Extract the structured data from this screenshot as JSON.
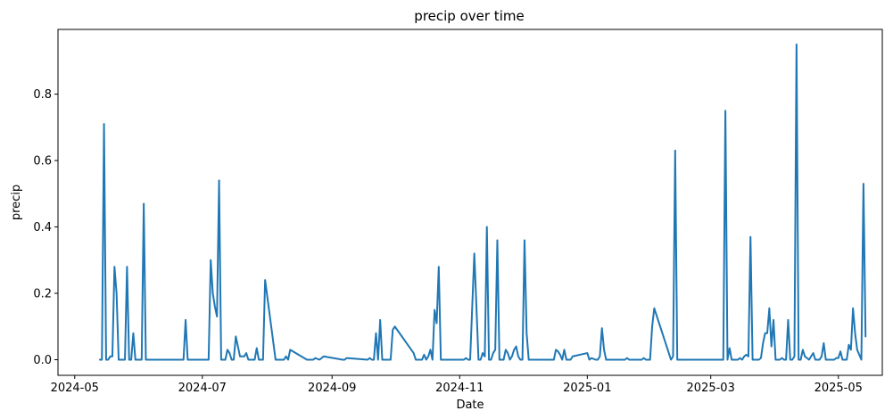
{
  "chart_data": {
    "type": "line",
    "title": "precip over time",
    "xlabel": "Date",
    "ylabel": "precip",
    "grid": false,
    "legend": "none",
    "color": "#1f77b4",
    "xlim": [
      "2024-04-23",
      "2025-05-22"
    ],
    "ylim": [
      -0.047,
      0.995
    ],
    "x_ticks": [
      {
        "date": "2024-05-01",
        "label": "2024-05"
      },
      {
        "date": "2024-07-01",
        "label": "2024-07"
      },
      {
        "date": "2024-09-01",
        "label": "2024-09"
      },
      {
        "date": "2024-11-01",
        "label": "2024-11"
      },
      {
        "date": "2025-01-01",
        "label": "2025-01"
      },
      {
        "date": "2025-03-01",
        "label": "2025-03"
      },
      {
        "date": "2025-05-01",
        "label": "2025-05"
      }
    ],
    "y_ticks": [
      {
        "value": 0.0,
        "label": "0.0"
      },
      {
        "value": 0.2,
        "label": "0.2"
      },
      {
        "value": 0.4,
        "label": "0.4"
      },
      {
        "value": 0.6,
        "label": "0.6"
      },
      {
        "value": 0.8,
        "label": "0.8"
      }
    ],
    "series": [
      {
        "x": [
          "2024-05-13",
          "2024-05-14",
          "2024-05-15",
          "2024-05-16",
          "2024-05-17",
          "2024-05-18",
          "2024-05-19",
          "2024-05-20",
          "2024-05-21",
          "2024-05-22",
          "2024-05-23",
          "2024-05-24",
          "2024-05-25",
          "2024-05-26",
          "2024-05-27",
          "2024-05-28",
          "2024-05-29",
          "2024-05-30",
          "2024-05-31",
          "2024-06-01",
          "2024-06-02",
          "2024-06-03",
          "2024-06-04",
          "2024-06-05",
          "2024-06-06",
          "2024-06-10",
          "2024-06-20",
          "2024-06-22",
          "2024-06-23",
          "2024-06-24",
          "2024-06-25",
          "2024-07-03",
          "2024-07-04",
          "2024-07-05",
          "2024-07-06",
          "2024-07-07",
          "2024-07-08",
          "2024-07-09",
          "2024-07-10",
          "2024-07-11",
          "2024-07-12",
          "2024-07-13",
          "2024-07-14",
          "2024-07-15",
          "2024-07-16",
          "2024-07-17",
          "2024-07-18",
          "2024-07-19",
          "2024-07-20",
          "2024-07-21",
          "2024-07-22",
          "2024-07-23",
          "2024-07-24",
          "2024-07-25",
          "2024-07-26",
          "2024-07-27",
          "2024-07-28",
          "2024-07-29",
          "2024-07-30",
          "2024-07-31",
          "2024-08-05",
          "2024-08-06",
          "2024-08-08",
          "2024-08-09",
          "2024-08-10",
          "2024-08-11",
          "2024-08-12",
          "2024-08-20",
          "2024-08-23",
          "2024-08-24",
          "2024-08-26",
          "2024-08-27",
          "2024-08-28",
          "2024-09-06",
          "2024-09-07",
          "2024-09-08",
          "2024-09-18",
          "2024-09-19",
          "2024-09-20",
          "2024-09-21",
          "2024-09-22",
          "2024-09-23",
          "2024-09-24",
          "2024-09-25",
          "2024-09-26",
          "2024-09-27",
          "2024-09-28",
          "2024-09-29",
          "2024-09-30",
          "2024-10-01",
          "2024-10-10",
          "2024-10-11",
          "2024-10-12",
          "2024-10-13",
          "2024-10-14",
          "2024-10-15",
          "2024-10-16",
          "2024-10-17",
          "2024-10-18",
          "2024-10-19",
          "2024-10-20",
          "2024-10-21",
          "2024-10-22",
          "2024-10-23",
          "2024-10-24",
          "2024-10-28",
          "2024-11-01",
          "2024-11-03",
          "2024-11-04",
          "2024-11-05",
          "2024-11-06",
          "2024-11-07",
          "2024-11-08",
          "2024-11-10",
          "2024-11-11",
          "2024-11-12",
          "2024-11-13",
          "2024-11-14",
          "2024-11-15",
          "2024-11-16",
          "2024-11-17",
          "2024-11-18",
          "2024-11-19",
          "2024-11-20",
          "2024-11-21",
          "2024-11-22",
          "2024-11-23",
          "2024-11-24",
          "2024-11-25",
          "2024-11-26",
          "2024-11-27",
          "2024-11-28",
          "2024-11-29",
          "2024-11-30",
          "2024-12-01",
          "2024-12-02",
          "2024-12-03",
          "2024-12-04",
          "2024-12-12",
          "2024-12-15",
          "2024-12-16",
          "2024-12-17",
          "2024-12-18",
          "2024-12-19",
          "2024-12-20",
          "2024-12-21",
          "2024-12-22",
          "2024-12-23",
          "2024-12-24",
          "2024-12-25",
          "2025-01-01",
          "2025-01-02",
          "2025-01-03",
          "2025-01-05",
          "2025-01-06",
          "2025-01-07",
          "2025-01-08",
          "2025-01-09",
          "2025-01-10",
          "2025-01-17",
          "2025-01-18",
          "2025-01-19",
          "2025-01-20",
          "2025-01-21",
          "2025-01-22",
          "2025-01-23",
          "2025-01-24",
          "2025-01-25",
          "2025-01-26",
          "2025-01-27",
          "2025-01-28",
          "2025-01-29",
          "2025-01-30",
          "2025-01-31",
          "2025-02-01",
          "2025-02-02",
          "2025-02-10",
          "2025-02-11",
          "2025-02-12",
          "2025-02-13",
          "2025-02-14",
          "2025-02-15",
          "2025-02-28",
          "2025-03-01",
          "2025-03-02",
          "2025-03-03",
          "2025-03-04",
          "2025-03-05",
          "2025-03-06",
          "2025-03-07",
          "2025-03-08",
          "2025-03-09",
          "2025-03-10",
          "2025-03-11",
          "2025-03-12",
          "2025-03-13",
          "2025-03-14",
          "2025-03-15",
          "2025-03-16",
          "2025-03-17",
          "2025-03-18",
          "2025-03-19",
          "2025-03-20",
          "2025-03-21",
          "2025-03-22",
          "2025-03-23",
          "2025-03-24",
          "2025-03-25",
          "2025-03-26",
          "2025-03-27",
          "2025-03-28",
          "2025-03-29",
          "2025-03-30",
          "2025-03-31",
          "2025-04-01",
          "2025-04-02",
          "2025-04-03",
          "2025-04-04",
          "2025-04-05",
          "2025-04-06",
          "2025-04-07",
          "2025-04-08",
          "2025-04-09",
          "2025-04-10",
          "2025-04-11",
          "2025-04-12",
          "2025-04-13",
          "2025-04-14",
          "2025-04-15",
          "2025-04-16",
          "2025-04-17",
          "2025-04-18",
          "2025-04-19",
          "2025-04-20",
          "2025-04-21",
          "2025-04-22",
          "2025-04-23",
          "2025-04-24",
          "2025-04-25",
          "2025-04-26",
          "2025-04-27",
          "2025-04-28",
          "2025-04-29",
          "2025-04-30",
          "2025-05-01",
          "2025-05-02",
          "2025-05-03",
          "2025-05-04",
          "2025-05-05",
          "2025-05-06",
          "2025-05-07",
          "2025-05-08",
          "2025-05-09",
          "2025-05-10",
          "2025-05-11",
          "2025-05-12",
          "2025-05-13",
          "2025-05-14"
        ],
        "y": [
          0,
          0,
          0.71,
          0,
          0,
          0.01,
          0.01,
          0.28,
          0.2,
          0,
          0,
          0,
          0,
          0.28,
          0,
          0,
          0.08,
          0,
          0,
          0,
          0,
          0.47,
          0,
          0,
          0,
          0,
          0,
          0,
          0.12,
          0,
          0,
          0,
          0,
          0.3,
          0.2,
          0.16,
          0.13,
          0.54,
          0,
          0,
          0,
          0.03,
          0.02,
          0,
          0,
          0.07,
          0.04,
          0.01,
          0.01,
          0.01,
          0.02,
          0,
          0,
          0,
          0,
          0.035,
          0,
          0,
          0,
          0.24,
          0,
          0,
          0,
          0,
          0.01,
          0,
          0.03,
          0,
          0,
          0.005,
          0,
          0.005,
          0.01,
          0,
          0,
          0.005,
          0,
          0.005,
          0,
          0,
          0.08,
          0,
          0.12,
          0,
          0,
          0,
          0,
          0,
          0.09,
          0.1,
          0.02,
          0,
          0,
          0,
          0,
          0.015,
          0,
          0.01,
          0.03,
          0,
          0.15,
          0.11,
          0.28,
          0,
          0,
          0,
          0,
          0,
          0.005,
          0,
          0,
          0.16,
          0.32,
          0,
          0,
          0.02,
          0.01,
          0.4,
          0,
          0,
          0.02,
          0.03,
          0.36,
          0,
          0,
          0,
          0.03,
          0.02,
          0,
          0.01,
          0.03,
          0.04,
          0.01,
          0,
          0,
          0.36,
          0.08,
          0,
          0,
          0,
          0,
          0.03,
          0.025,
          0.015,
          0,
          0.03,
          0,
          0,
          0,
          0.01,
          0.02,
          0,
          0.005,
          0,
          0,
          0.01,
          0.095,
          0.03,
          0,
          0,
          0,
          0,
          0.005,
          0,
          0,
          0,
          0,
          0,
          0,
          0,
          0.005,
          0,
          0,
          0,
          0.1,
          0.155,
          0,
          0.01,
          0.63,
          0,
          0,
          0,
          0,
          0,
          0,
          0,
          0,
          0,
          0,
          0,
          0.75,
          0,
          0.035,
          0,
          0,
          0,
          0,
          0.005,
          0,
          0.01,
          0.015,
          0.01,
          0.37,
          0,
          0,
          0,
          0,
          0.005,
          0.05,
          0.08,
          0.08,
          0.155,
          0.04,
          0.12,
          0,
          0,
          0,
          0.005,
          0,
          0,
          0.12,
          0,
          0,
          0.01,
          0.95,
          0,
          0,
          0.03,
          0.01,
          0.005,
          0,
          0.01,
          0.02,
          0,
          0,
          0,
          0.01,
          0.05,
          0,
          0,
          0,
          0,
          0,
          0.005,
          0.005,
          0.025,
          0,
          0,
          0,
          0.045,
          0.03,
          0.155,
          0.08,
          0.03,
          0.015,
          0,
          0.53,
          0.07
        ]
      }
    ]
  }
}
